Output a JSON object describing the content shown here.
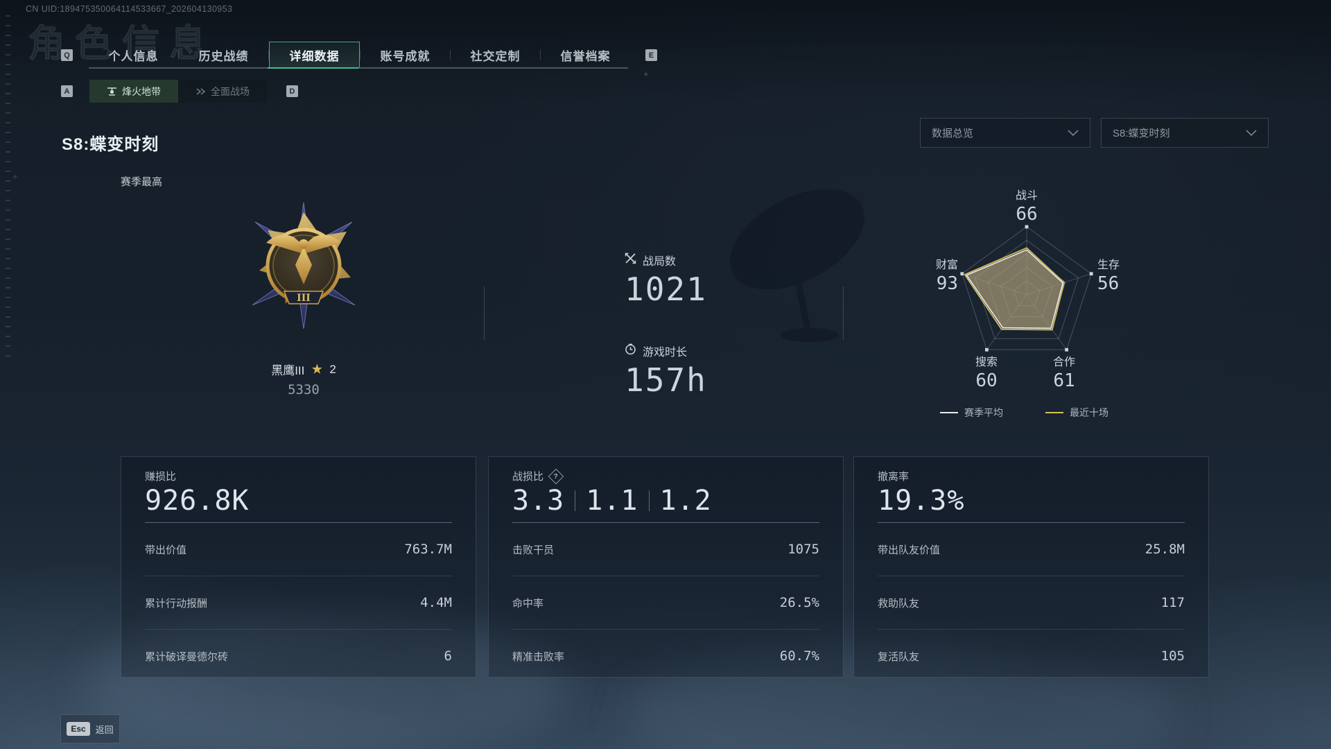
{
  "window": {
    "uid": "CN UID:189475350064114533667_202604130953",
    "ghost_title": "角色信息"
  },
  "colors": {
    "accent_green": "#3fbf8f",
    "radar_yellow": "#d9c05a",
    "radar_white": "#e9ecef",
    "gold": "#d9b65a"
  },
  "tabs": {
    "left_key": "Q",
    "right_key": "E",
    "items": [
      {
        "label": "个人信息",
        "active": false
      },
      {
        "label": "历史战绩",
        "active": false
      },
      {
        "label": "详细数据",
        "active": true
      },
      {
        "label": "账号成就",
        "active": false
      },
      {
        "label": "社交定制",
        "active": false
      },
      {
        "label": "信誉档案",
        "active": false
      }
    ]
  },
  "subtabs": {
    "left_key": "A",
    "right_key": "D",
    "items": [
      {
        "label": "烽火地带",
        "active": true
      },
      {
        "label": "全面战场",
        "active": false
      }
    ]
  },
  "season": {
    "title": "S8:蝶变时刻",
    "highest_label": "赛季最高",
    "filters": [
      {
        "value": "数据总览"
      },
      {
        "value": "S8:蝶变时刻"
      }
    ]
  },
  "badge": {
    "name": "黑鹰III",
    "star_count": "2",
    "points": "5330",
    "rank_numeral": "III"
  },
  "summary": [
    {
      "icon": "crossed-swords",
      "label": "战局数",
      "value": "1021"
    },
    {
      "icon": "clock",
      "label": "游戏时长",
      "value": "157h"
    }
  ],
  "chart_data": {
    "type": "radar",
    "max": 100,
    "grid": true,
    "legend_position": "bottom",
    "axes": [
      {
        "label": "战斗",
        "value": 66
      },
      {
        "label": "生存",
        "value": 56
      },
      {
        "label": "合作",
        "value": 61
      },
      {
        "label": "搜索",
        "value": 60
      },
      {
        "label": "财富",
        "value": 93
      }
    ],
    "series": [
      {
        "name": "赛季平均",
        "color": "#e9ecef",
        "values": [
          66,
          56,
          61,
          60,
          93
        ]
      },
      {
        "name": "最近十场",
        "color": "#d9c05a",
        "values": [
          69,
          58,
          64,
          63,
          96
        ]
      }
    ]
  },
  "cards": [
    {
      "title": "赚损比",
      "big_values": [
        "926.8K"
      ],
      "rows": [
        {
          "label": "带出价值",
          "value": "763.7M"
        },
        {
          "label": "累计行动报酬",
          "value": "4.4M"
        },
        {
          "label": "累计破译曼德尔砖",
          "value": "6"
        }
      ]
    },
    {
      "title": "战损比",
      "help_icon": "?",
      "big_values": [
        "3.3",
        "1.1",
        "1.2"
      ],
      "rows": [
        {
          "label": "击败干员",
          "value": "1075"
        },
        {
          "label": "命中率",
          "value": "26.5%"
        },
        {
          "label": "精准击败率",
          "value": "60.7%"
        }
      ]
    },
    {
      "title": "撤离率",
      "big_values": [
        "19.3%"
      ],
      "rows": [
        {
          "label": "带出队友价值",
          "value": "25.8M"
        },
        {
          "label": "救助队友",
          "value": "117"
        },
        {
          "label": "复活队友",
          "value": "105"
        }
      ]
    }
  ],
  "footer": {
    "key": "Esc",
    "label": "返回"
  }
}
